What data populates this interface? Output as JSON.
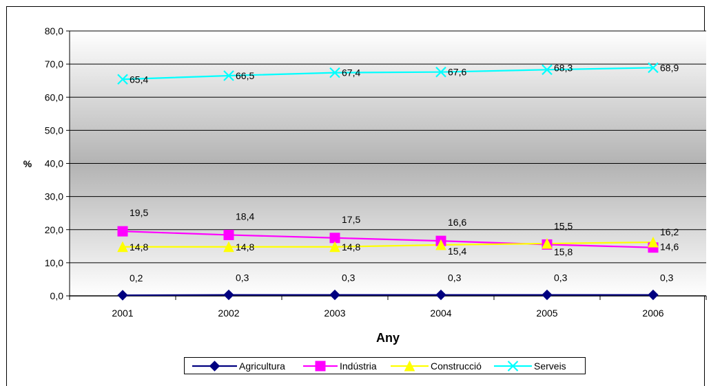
{
  "chart_data": {
    "type": "line",
    "categories": [
      "2001",
      "2002",
      "2003",
      "2004",
      "2005",
      "2006"
    ],
    "xlabel": "Any",
    "ylabel": "%",
    "ylim": [
      0,
      80
    ],
    "yticks": [
      "0,0",
      "10,0",
      "20,0",
      "30,0",
      "40,0",
      "50,0",
      "60,0",
      "70,0",
      "80,0"
    ],
    "grid": true,
    "legend_position": "bottom",
    "series": [
      {
        "name": "Agricultura",
        "color": "#000080",
        "marker": "diamond",
        "values": [
          0.2,
          0.3,
          0.3,
          0.3,
          0.3,
          0.3
        ],
        "labels": [
          "0,2",
          "0,3",
          "0,3",
          "0,3",
          "0,3",
          "0,3"
        ]
      },
      {
        "name": "Indústria",
        "color": "#FF00FF",
        "marker": "square",
        "values": [
          19.5,
          18.4,
          17.5,
          16.6,
          15.5,
          14.6
        ],
        "labels": [
          "19,5",
          "18,4",
          "17,5",
          "16,6",
          "15,5",
          "14,6"
        ]
      },
      {
        "name": "Construcció",
        "color": "#FFFF00",
        "marker": "triangle",
        "values": [
          14.8,
          14.8,
          14.8,
          15.4,
          15.8,
          16.2
        ],
        "labels": [
          "14,8",
          "14,8",
          "14,8",
          "15,4",
          "15,8",
          "16,2"
        ]
      },
      {
        "name": "Serveis",
        "color": "#00FFFF",
        "marker": "x",
        "values": [
          65.4,
          66.5,
          67.4,
          67.6,
          68.3,
          68.9
        ],
        "labels": [
          "65,4",
          "66,5",
          "67,4",
          "67,6",
          "68,3",
          "68,9"
        ]
      }
    ]
  }
}
